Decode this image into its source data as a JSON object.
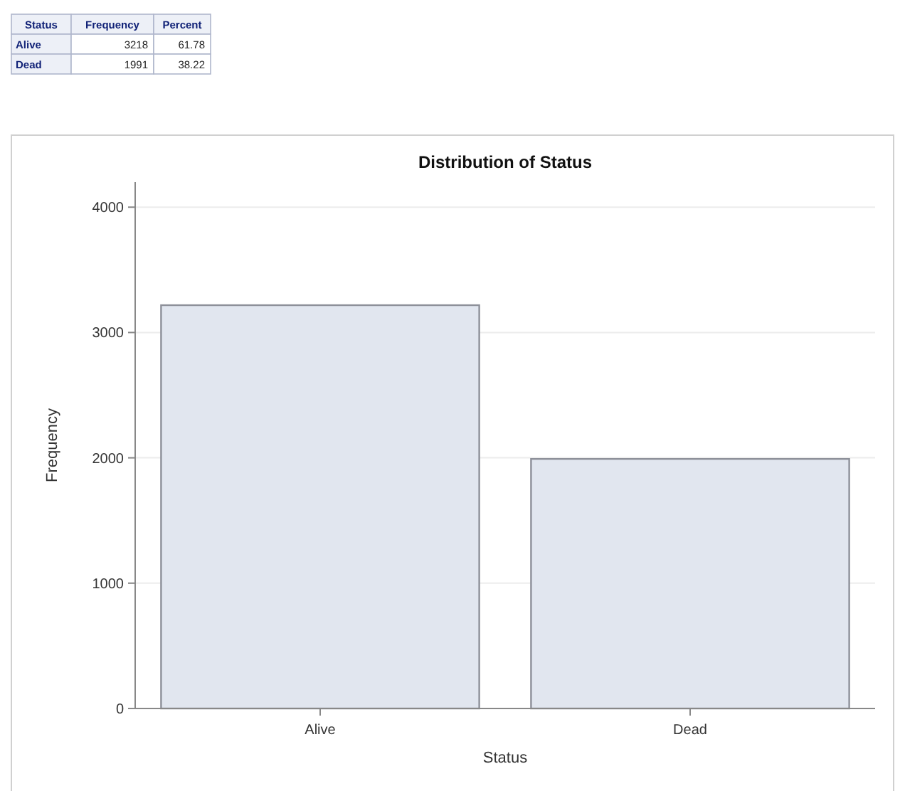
{
  "chart_data": [
    {
      "type": "other",
      "annotations": [
        "Status",
        "Frequency",
        "Percent",
        "Alive",
        "3218",
        "61.78",
        "Dead",
        "1991",
        "38.22"
      ]
    },
    {
      "type": "bar",
      "title": "Distribution of Status",
      "xlabel": "Status",
      "ylabel": "Frequency",
      "categories": [
        "Alive",
        "Dead"
      ],
      "values": [
        3218,
        1991
      ],
      "color": "#e1e6ef",
      "ylim": [
        0,
        4200
      ],
      "yticks": [
        0,
        1000,
        2000,
        3000,
        4000
      ],
      "grid": "y"
    }
  ]
}
